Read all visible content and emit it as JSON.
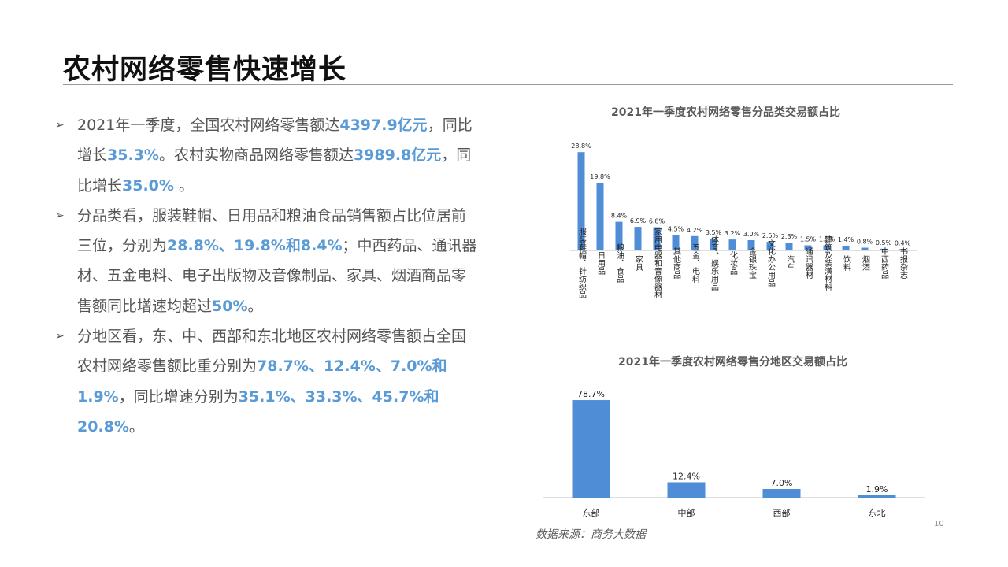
{
  "slide": {
    "title": "农村网络零售快速增长",
    "page_number": "10",
    "source": "数据来源：商务大数据"
  },
  "bullets": [
    {
      "segments": [
        {
          "t": "2021年一季度，全国农村网络零售额达",
          "hl": false
        },
        {
          "t": "4397.9亿元",
          "hl": true
        },
        {
          "t": "，同比增长",
          "hl": false
        },
        {
          "t": "35.3%",
          "hl": true
        },
        {
          "t": "。农村实物商品网络零售额达",
          "hl": false
        },
        {
          "t": "3989.8亿元",
          "hl": true
        },
        {
          "t": "，同比增长",
          "hl": false
        },
        {
          "t": "35.0%",
          "hl": true
        },
        {
          "t": " 。",
          "hl": false
        }
      ]
    },
    {
      "segments": [
        {
          "t": "分品类看，服装鞋帽、日用品和粮油食品销售额占比位居前三位，分别为",
          "hl": false
        },
        {
          "t": "28.8%、19.8%和8.4%",
          "hl": true
        },
        {
          "t": "；中西药品、通讯器材、五金电料、电子出版物及音像制品、家具、烟酒商品零售额同比增速均超过",
          "hl": false
        },
        {
          "t": "50%",
          "hl": true
        },
        {
          "t": "。",
          "hl": false
        }
      ]
    },
    {
      "segments": [
        {
          "t": "分地区看，东、中、西部和东北地区农村网络零售额占全国农村网络零售额比重分别为",
          "hl": false
        },
        {
          "t": "78.7%、12.4%、7.0%和1.9%",
          "hl": true
        },
        {
          "t": "，同比增速分别为",
          "hl": false
        },
        {
          "t": "35.1%、33.3%、45.7%和20.8%",
          "hl": true
        },
        {
          "t": "。",
          "hl": false
        }
      ]
    }
  ],
  "colors": {
    "bar": "#4f8ed6",
    "highlight": "#5a9bd5"
  },
  "chart_data": [
    {
      "type": "bar",
      "title": "2021年一季度农村网络零售分品类交易额占比",
      "categories": [
        "服装鞋帽、针纺织品",
        "日用品",
        "粮油、食品",
        "家具",
        "家用电器和音像器材",
        "其他商品",
        "五金、电料",
        "体育、娱乐用品",
        "化妆品",
        "金银珠宝",
        "文化办公用品",
        "汽车",
        "通讯器材",
        "建筑及装潢材料",
        "饮料",
        "烟酒",
        "中西药品",
        "书报杂志"
      ],
      "values": [
        28.8,
        19.8,
        8.4,
        6.9,
        6.8,
        4.5,
        4.2,
        3.5,
        3.2,
        3.0,
        2.5,
        2.3,
        1.5,
        1.5,
        1.4,
        0.8,
        0.5,
        0.4
      ],
      "value_labels": [
        "28.8%",
        "19.8%",
        "8.4%",
        "6.9%",
        "6.8%",
        "4.5%",
        "4.2%",
        "3.5%",
        "3.2%",
        "3.0%",
        "2.5%",
        "2.3%",
        "1.5%",
        "1.5%",
        "1.4%",
        "0.8%",
        "0.5%",
        "0.4%"
      ],
      "ylim": [
        0,
        30
      ],
      "grid": false
    },
    {
      "type": "bar",
      "title": "2021年一季度农村网络零售分地区交易额占比",
      "categories": [
        "东部",
        "中部",
        "西部",
        "东北"
      ],
      "values": [
        78.7,
        12.4,
        7.0,
        1.9
      ],
      "value_labels": [
        "78.7%",
        "12.4%",
        "7.0%",
        "1.9%"
      ],
      "ylim": [
        0,
        80
      ],
      "grid": false
    }
  ]
}
